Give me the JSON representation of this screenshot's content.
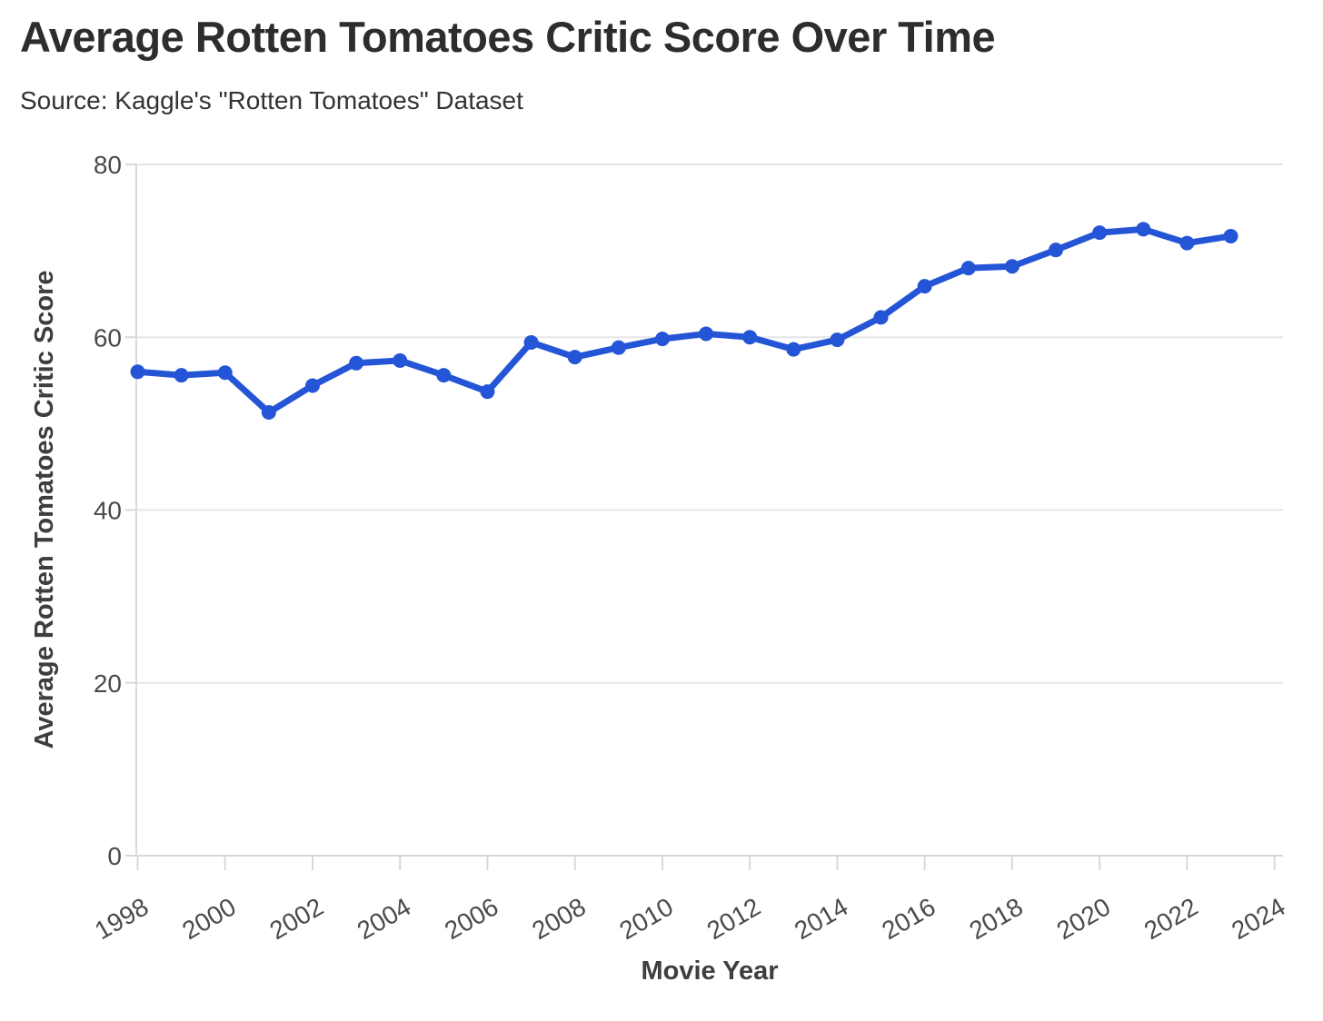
{
  "header": {
    "title": "Average Rotten Tomatoes Critic Score Over Time",
    "subtitle": "Source: Kaggle's \"Rotten Tomatoes\" Dataset"
  },
  "chart_data": {
    "type": "line",
    "title": "Average Rotten Tomatoes Critic Score Over Time",
    "subtitle": "Source: Kaggle's \"Rotten Tomatoes\" Dataset",
    "xlabel": "Movie Year",
    "ylabel": "Average Rotten Tomatoes Critic Score",
    "series_name": "Average Rotten Tomatoes Critic Score",
    "x": [
      1998,
      1999,
      2000,
      2001,
      2002,
      2003,
      2004,
      2005,
      2006,
      2007,
      2008,
      2009,
      2010,
      2011,
      2012,
      2013,
      2014,
      2015,
      2016,
      2017,
      2018,
      2019,
      2020,
      2021,
      2022,
      2023
    ],
    "y": [
      56.0,
      55.6,
      55.9,
      51.3,
      54.4,
      57.0,
      57.3,
      55.6,
      53.7,
      59.4,
      57.7,
      58.8,
      59.8,
      60.4,
      60.0,
      58.6,
      59.7,
      62.3,
      65.9,
      68.0,
      68.2,
      70.1,
      72.1,
      72.5,
      70.9,
      71.7
    ],
    "x_ticks": [
      1998,
      2000,
      2002,
      2004,
      2006,
      2008,
      2010,
      2012,
      2014,
      2016,
      2018,
      2020,
      2022,
      2024
    ],
    "y_ticks": [
      0,
      20,
      40,
      60,
      80
    ],
    "xlim": [
      1998,
      2024.2
    ],
    "ylim": [
      0,
      80
    ],
    "grid": "horizontal-only",
    "legend": "none",
    "line_color": "#2455d6",
    "marker": "circle",
    "tick_label_color": "#4a4a4a",
    "gridline_color": "#e6e6e6",
    "axis_line_color": "#d8d8d8"
  }
}
